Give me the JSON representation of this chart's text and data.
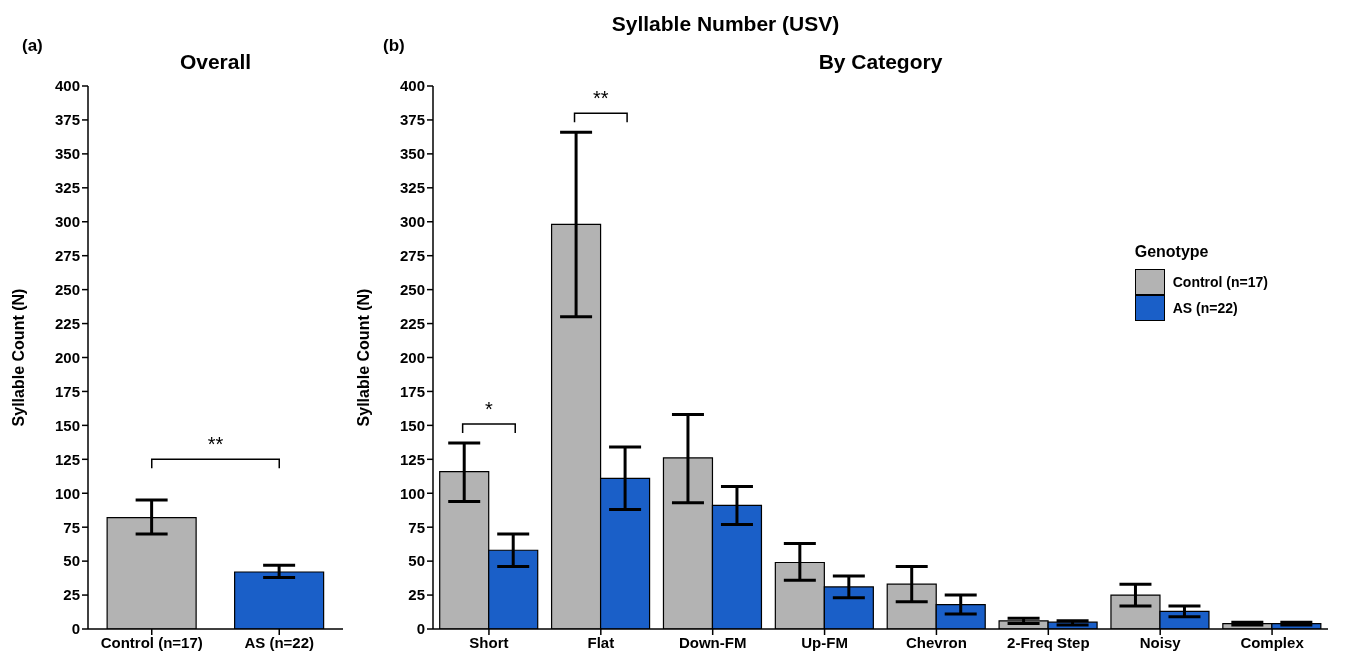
{
  "chart_data": [
    {
      "type": "bar",
      "title": "Overall",
      "annotations": [
        "(a)",
        "**"
      ],
      "categories": [
        "Control (n=17)",
        "AS (n=22)"
      ],
      "values": [
        82,
        42
      ],
      "colors": [
        "#b3b3b3",
        "#1a5fc8"
      ],
      "errors": [
        [
          70,
          95
        ],
        [
          38,
          47
        ]
      ],
      "ylabel": "Syllable Count (N)",
      "ylim": [
        0,
        400
      ],
      "yticks": [
        0,
        25,
        50,
        75,
        100,
        125,
        150,
        175,
        200,
        225,
        250,
        275,
        300,
        325,
        350,
        375,
        400
      ]
    },
    {
      "type": "bar",
      "title": "Syllable Number (USV)",
      "subtitle": "By Category",
      "annotations": [
        "(b)",
        "*",
        "**"
      ],
      "categories": [
        "Short",
        "Flat",
        "Down-FM",
        "Up-FM",
        "Chevron",
        "2-Freq Step",
        "Noisy",
        "Complex"
      ],
      "series": [
        {
          "name": "Control (n=17)",
          "color": "#b3b3b3",
          "values": [
            116,
            298,
            126,
            49,
            33,
            6,
            25,
            4
          ],
          "errors": [
            [
              94,
              137
            ],
            [
              230,
              366
            ],
            [
              93,
              158
            ],
            [
              36,
              63
            ],
            [
              20,
              46
            ],
            [
              4,
              8
            ],
            [
              17,
              33
            ],
            [
              3,
              5
            ]
          ]
        },
        {
          "name": "AS (n=22)",
          "color": "#1a5fc8",
          "values": [
            58,
            111,
            91,
            31,
            18,
            5,
            13,
            4
          ],
          "errors": [
            [
              46,
              70
            ],
            [
              88,
              134
            ],
            [
              77,
              105
            ],
            [
              23,
              39
            ],
            [
              11,
              25
            ],
            [
              3,
              6
            ],
            [
              9,
              17
            ],
            [
              3,
              5
            ]
          ]
        }
      ],
      "legend": "right",
      "legend_title": "Genotype",
      "ylabel": "Syllable Count (N)",
      "ylim": [
        0,
        400
      ],
      "yticks": [
        0,
        25,
        50,
        75,
        100,
        125,
        150,
        175,
        200,
        225,
        250,
        275,
        300,
        325,
        350,
        375,
        400
      ]
    }
  ]
}
